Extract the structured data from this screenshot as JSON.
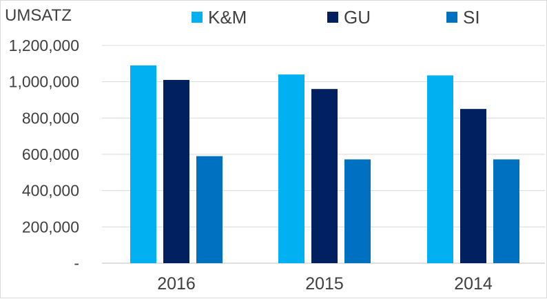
{
  "chart_data": {
    "type": "bar",
    "title": "",
    "xlabel": "",
    "ylabel": "UMSATZ",
    "categories": [
      "2016",
      "2015",
      "2014"
    ],
    "series": [
      {
        "name": "K&M",
        "color": "#00B0F0",
        "values": [
          1090000,
          1040000,
          1035000
        ]
      },
      {
        "name": "GU",
        "color": "#002060",
        "values": [
          1010000,
          960000,
          850000
        ]
      },
      {
        "name": "SI",
        "color": "#0070C0",
        "values": [
          590000,
          572000,
          572000
        ]
      }
    ],
    "ylim": [
      0,
      1200000
    ],
    "yticks": [
      "-",
      "200,000",
      "400,000",
      "600,000",
      "800,000",
      "1,000,000",
      "1,200,000"
    ],
    "grid": true,
    "legend_position": "top"
  }
}
